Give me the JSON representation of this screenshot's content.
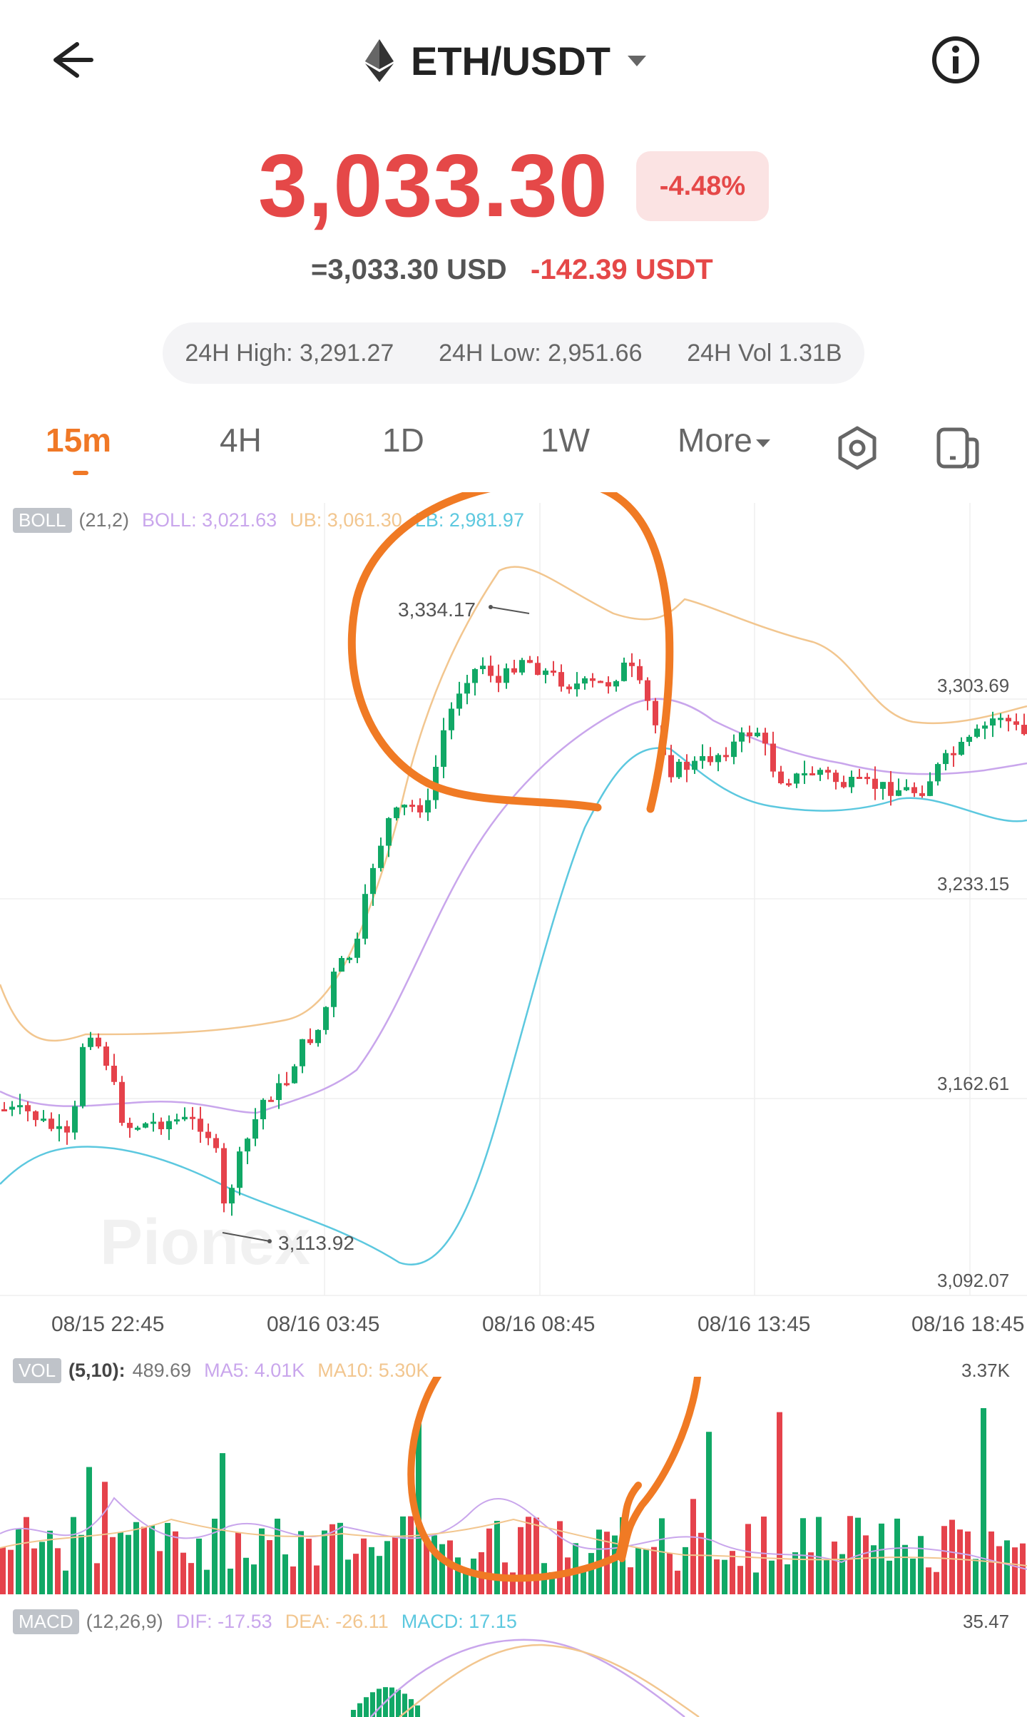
{
  "header": {
    "pair": "ETH/USDT",
    "icons": {
      "back": "back-arrow-icon",
      "coin": "ethereum-icon",
      "dropdown": "caret-down-icon",
      "info": "info-icon"
    }
  },
  "ticker": {
    "price": "3,033.30",
    "change_pct": "-4.48%",
    "usd_equivalent": "=3,033.30 USD",
    "change_abs": "-142.39 USDT",
    "high_24h": "24H High: 3,291.27",
    "low_24h": "24H Low: 2,951.66",
    "vol_24h": "24H Vol 1.31B"
  },
  "tabs": [
    {
      "label": "15m",
      "active": true
    },
    {
      "label": "4H",
      "active": false
    },
    {
      "label": "1D",
      "active": false
    },
    {
      "label": "1W",
      "active": false
    },
    {
      "label": "More",
      "active": false
    }
  ],
  "tab_icons": {
    "settings": "hexagon-settings-icon",
    "layout": "layout-toggle-icon"
  },
  "boll": {
    "tag": "BOLL",
    "params": "(21,2)",
    "boll": "BOLL: 3,021.63",
    "ub": "UB: 3,061.30",
    "lb": "LB: 2,981.97"
  },
  "price_axis": [
    "3,303.69",
    "3,233.15",
    "3,162.61",
    "3,092.07"
  ],
  "markers": {
    "high": "3,334.17",
    "low": "3,113.92"
  },
  "time_axis": [
    "08/15 22:45",
    "08/16 03:45",
    "08/16 08:45",
    "08/16 13:45",
    "08/16 18:45"
  ],
  "watermark": "Pionex",
  "vol": {
    "tag": "VOL",
    "params": "(5,10):",
    "value": "489.69",
    "ma5": "MA5: 4.01K",
    "ma10": "MA10: 5.30K",
    "axis_max": "3.37K"
  },
  "macd": {
    "tag": "MACD",
    "params": "(12,26,9)",
    "dif": "DIF: -17.53",
    "dea": "DEA: -26.11",
    "macd": "MACD: 17.15",
    "axis_max": "35.47"
  },
  "colors": {
    "up": "#11a866",
    "down": "#e5424b",
    "accent": "#f07826",
    "price": "#e54848",
    "ub": "#f2c68f",
    "mid": "#c9a6ec",
    "lb": "#5cc8df",
    "annotation": "#f07a24"
  },
  "chart_data": {
    "type": "candlestick",
    "interval": "15m",
    "price_range": [
      3092.07,
      3334.17
    ],
    "series": [
      {
        "name": "BOLL",
        "params": "(21,2)",
        "last": 3021.63
      },
      {
        "name": "UB",
        "last": 3061.3
      },
      {
        "name": "LB",
        "last": 2981.97
      }
    ],
    "candles_shape": "rise from ~3,113.92 low to ~3,334.17 high around 08/16 08:00, then consolidation near 3,240-3,300",
    "volume_axis_max": "3.37K",
    "macd_axis_max": "35.47"
  }
}
